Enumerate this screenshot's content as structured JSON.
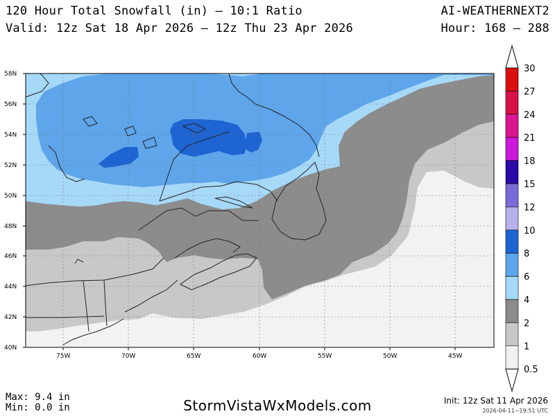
{
  "header": {
    "title": "120 Hour Total Snowfall (in) — 10:1 Ratio",
    "valid": "Valid: 12z Sat 18 Apr 2026 — 12z Thu 23 Apr 2026",
    "model": "AI-WEATHERNEXT2",
    "hours": "Hour: 168 — 288"
  },
  "footer": {
    "max": "Max: 9.4 in",
    "min": "Min: 0.0 in",
    "site": "StormVistaWxModels.com",
    "init": "Init: 12z Sat 11 Apr 2026",
    "stamp": "2026-04-11~19:51 UTC"
  },
  "map": {
    "lat_labels": [
      "58N",
      "56N",
      "54N",
      "52N",
      "50N",
      "48N",
      "46N",
      "44N",
      "42N",
      "40N"
    ],
    "lon_labels": [
      "75W",
      "70W",
      "65W",
      "60W",
      "55W",
      "50W",
      "45W"
    ],
    "colors": {
      "bg": "#e8e8e8",
      "band_0_5": "#f2f2f2",
      "band_1": "#c8c8c8",
      "band_2": "#8c8c8c",
      "band_4": "#a6d8f8",
      "band_6": "#5ea5ea",
      "band_8": "#1e64d2",
      "coast": "#222222",
      "grid": "#777777"
    }
  },
  "colorbar": {
    "labels": [
      "30",
      "27",
      "24",
      "21",
      "18",
      "15",
      "12",
      "10",
      "8",
      "6",
      "4",
      "2",
      "1",
      "0.5"
    ],
    "colors": [
      "#d81010",
      "#d8104a",
      "#d81890",
      "#cc18d8",
      "#2a0aa8",
      "#7a6ad8",
      "#b8b0ec",
      "#1e64d2",
      "#5ea5ea",
      "#a6d8f8",
      "#8c8c8c",
      "#c8c8c8",
      "#f0f0f0"
    ]
  }
}
